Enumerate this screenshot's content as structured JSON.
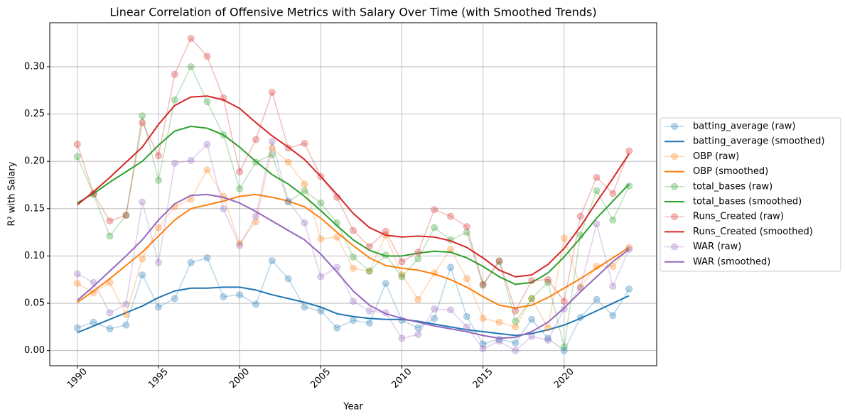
{
  "chart_data": {
    "type": "line",
    "title": "Linear Correlation of Offensive Metrics with Salary Over Time (with Smoothed Trends)",
    "x_label": "Year",
    "y_label": "R² with Salary",
    "x": [
      1990,
      1991,
      1992,
      1993,
      1994,
      1995,
      1996,
      1997,
      1998,
      1999,
      2000,
      2001,
      2002,
      2003,
      2004,
      2005,
      2006,
      2007,
      2008,
      2009,
      2010,
      2011,
      2012,
      2013,
      2014,
      2015,
      2016,
      2017,
      2018,
      2019,
      2020,
      2021,
      2022,
      2023,
      2024
    ],
    "xlim": [
      1988.3,
      2025.7
    ],
    "xticks": [
      1990,
      1995,
      2000,
      2005,
      2010,
      2015,
      2020
    ],
    "ylim": [
      -0.016,
      0.3465
    ],
    "yticks": [
      {
        "value": 0,
        "label": "0.00"
      },
      {
        "value": 0.05,
        "label": "0.05"
      },
      {
        "value": 0.1,
        "label": "0.10"
      },
      {
        "value": 0.15,
        "label": "0.15"
      },
      {
        "value": 0.2,
        "label": "0.20"
      },
      {
        "value": 0.25,
        "label": "0.25"
      },
      {
        "value": 0.3,
        "label": "0.30"
      }
    ],
    "grid": true,
    "legend": "outside right",
    "series": [
      {
        "name": "batting_average (raw)",
        "color": "#1f77b4",
        "alpha": 0.3,
        "marker": "o",
        "values": [
          0.024,
          0.03,
          0.023,
          0.027,
          0.08,
          0.046,
          0.055,
          0.093,
          0.098,
          0.057,
          0.059,
          0.049,
          0.095,
          0.076,
          0.046,
          0.042,
          0.024,
          0.032,
          0.029,
          0.071,
          0.032,
          0.024,
          0.034,
          0.088,
          0.036,
          0.007,
          0.012,
          0.008,
          0.033,
          0.013,
          0.0,
          0.035,
          0.054,
          0.037,
          0.065
        ]
      },
      {
        "name": "batting_average (smoothed)",
        "color": "#1f77b4",
        "linewidth": 2,
        "values": [
          0.019,
          0.026,
          0.033,
          0.04,
          0.047,
          0.056,
          0.063,
          0.066,
          0.066,
          0.067,
          0.067,
          0.064,
          0.059,
          0.055,
          0.051,
          0.046,
          0.039,
          0.036,
          0.034,
          0.033,
          0.033,
          0.031,
          0.028,
          0.025,
          0.022,
          0.02,
          0.018,
          0.016,
          0.018,
          0.022,
          0.027,
          0.034,
          0.042,
          0.05,
          0.058
        ]
      },
      {
        "name": "OBP (raw)",
        "color": "#ff7f0e",
        "alpha": 0.3,
        "marker": "o",
        "values": [
          0.071,
          0.061,
          0.072,
          0.038,
          0.097,
          0.13,
          0.152,
          0.16,
          0.191,
          0.163,
          0.113,
          0.136,
          0.214,
          0.199,
          0.176,
          0.118,
          0.12,
          0.087,
          0.084,
          0.122,
          0.08,
          0.054,
          0.082,
          0.107,
          0.076,
          0.034,
          0.03,
          0.025,
          0.055,
          0.024,
          0.119,
          0.067,
          0.089,
          0.089,
          0.109
        ]
      },
      {
        "name": "OBP (smoothed)",
        "color": "#ff7f0e",
        "linewidth": 2,
        "values": [
          0.051,
          0.063,
          0.076,
          0.09,
          0.104,
          0.121,
          0.138,
          0.15,
          0.154,
          0.158,
          0.163,
          0.165,
          0.162,
          0.158,
          0.152,
          0.14,
          0.125,
          0.111,
          0.098,
          0.09,
          0.087,
          0.085,
          0.081,
          0.075,
          0.067,
          0.057,
          0.048,
          0.045,
          0.048,
          0.056,
          0.066,
          0.076,
          0.087,
          0.098,
          0.109
        ]
      },
      {
        "name": "total_bases (raw)",
        "color": "#2ca02c",
        "alpha": 0.3,
        "marker": "o",
        "values": [
          0.205,
          0.165,
          0.121,
          0.143,
          0.248,
          0.18,
          0.265,
          0.3,
          0.263,
          0.228,
          0.171,
          0.199,
          0.207,
          0.157,
          0.169,
          0.156,
          0.135,
          0.099,
          0.084,
          0.101,
          0.078,
          0.097,
          0.13,
          0.117,
          0.125,
          0.069,
          0.094,
          0.031,
          0.055,
          0.072,
          0.004,
          0.122,
          0.169,
          0.138,
          0.174
        ]
      },
      {
        "name": "total_bases (smoothed)",
        "color": "#2ca02c",
        "linewidth": 2,
        "values": [
          0.156,
          0.166,
          0.178,
          0.189,
          0.2,
          0.217,
          0.232,
          0.237,
          0.235,
          0.228,
          0.215,
          0.2,
          0.186,
          0.176,
          0.163,
          0.148,
          0.132,
          0.117,
          0.106,
          0.1,
          0.1,
          0.103,
          0.105,
          0.104,
          0.098,
          0.089,
          0.078,
          0.07,
          0.072,
          0.082,
          0.099,
          0.119,
          0.14,
          0.158,
          0.176
        ]
      },
      {
        "name": "Runs_Created (raw)",
        "color": "#d62728",
        "alpha": 0.3,
        "marker": "o",
        "values": [
          0.218,
          0.166,
          0.137,
          0.143,
          0.241,
          0.206,
          0.292,
          0.33,
          0.311,
          0.267,
          0.189,
          0.223,
          0.273,
          0.214,
          0.219,
          0.184,
          0.162,
          0.127,
          0.11,
          0.126,
          0.094,
          0.104,
          0.149,
          0.142,
          0.131,
          0.07,
          0.095,
          0.042,
          0.074,
          0.075,
          0.052,
          0.142,
          0.183,
          0.166,
          0.211
        ]
      },
      {
        "name": "Runs_Created (smoothed)",
        "color": "#d62728",
        "linewidth": 2,
        "values": [
          0.154,
          0.168,
          0.183,
          0.199,
          0.215,
          0.239,
          0.259,
          0.268,
          0.269,
          0.265,
          0.256,
          0.241,
          0.227,
          0.215,
          0.202,
          0.184,
          0.165,
          0.145,
          0.13,
          0.122,
          0.12,
          0.121,
          0.12,
          0.116,
          0.109,
          0.098,
          0.085,
          0.078,
          0.08,
          0.091,
          0.108,
          0.131,
          0.157,
          0.182,
          0.208
        ]
      },
      {
        "name": "WAR (raw)",
        "color": "#9467bd",
        "alpha": 0.3,
        "marker": "o",
        "values": [
          0.081,
          0.072,
          0.04,
          0.049,
          0.157,
          0.093,
          0.198,
          0.201,
          0.218,
          0.15,
          0.111,
          0.142,
          0.221,
          0.158,
          0.135,
          0.078,
          0.088,
          0.052,
          0.042,
          0.04,
          0.013,
          0.017,
          0.044,
          0.043,
          0.025,
          0.002,
          0.01,
          0.0,
          0.015,
          0.011,
          0.044,
          0.066,
          0.134,
          0.068,
          0.107
        ]
      },
      {
        "name": "WAR (smoothed)",
        "color": "#9467bd",
        "linewidth": 2,
        "values": [
          0.053,
          0.068,
          0.084,
          0.1,
          0.117,
          0.138,
          0.155,
          0.164,
          0.165,
          0.162,
          0.156,
          0.147,
          0.137,
          0.127,
          0.117,
          0.102,
          0.083,
          0.063,
          0.048,
          0.039,
          0.034,
          0.03,
          0.026,
          0.023,
          0.02,
          0.016,
          0.013,
          0.014,
          0.02,
          0.03,
          0.045,
          0.062,
          0.078,
          0.094,
          0.107
        ]
      }
    ]
  }
}
